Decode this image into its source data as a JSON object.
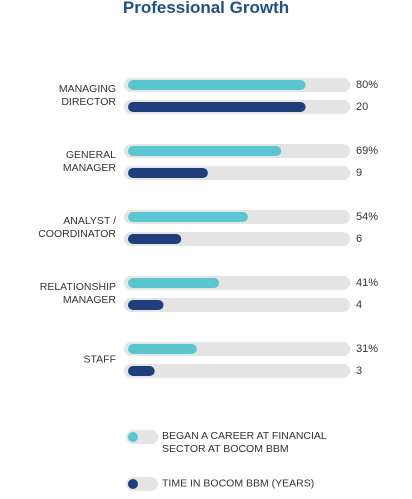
{
  "chart_data": {
    "type": "bar",
    "orientation": "horizontal",
    "title": "Professional Growth",
    "categories": [
      "MANAGING DIRECTOR",
      "GENERAL MANAGER",
      "ANALYST / COORDINATOR",
      "RELATIONSHIP MANAGER",
      "STAFF"
    ],
    "series": [
      {
        "name": "BEGAN A CAREER AT FINANCIAL SECTOR AT BOCOM BBM",
        "color": "#5bc6d1",
        "values": [
          80,
          69,
          54,
          41,
          31
        ],
        "value_labels": [
          "80%",
          "69%",
          "54%",
          "41%",
          "31%"
        ]
      },
      {
        "name": "TIME IN BOCOM BBM (YEARS)",
        "color": "#1f3f7c",
        "axis": "x2",
        "values": [
          20,
          9,
          6,
          4,
          3
        ]
      }
    ],
    "xlim": [
      0,
      100
    ],
    "x2lim": [
      0,
      25
    ],
    "track_color": "#e4e4e4"
  }
}
